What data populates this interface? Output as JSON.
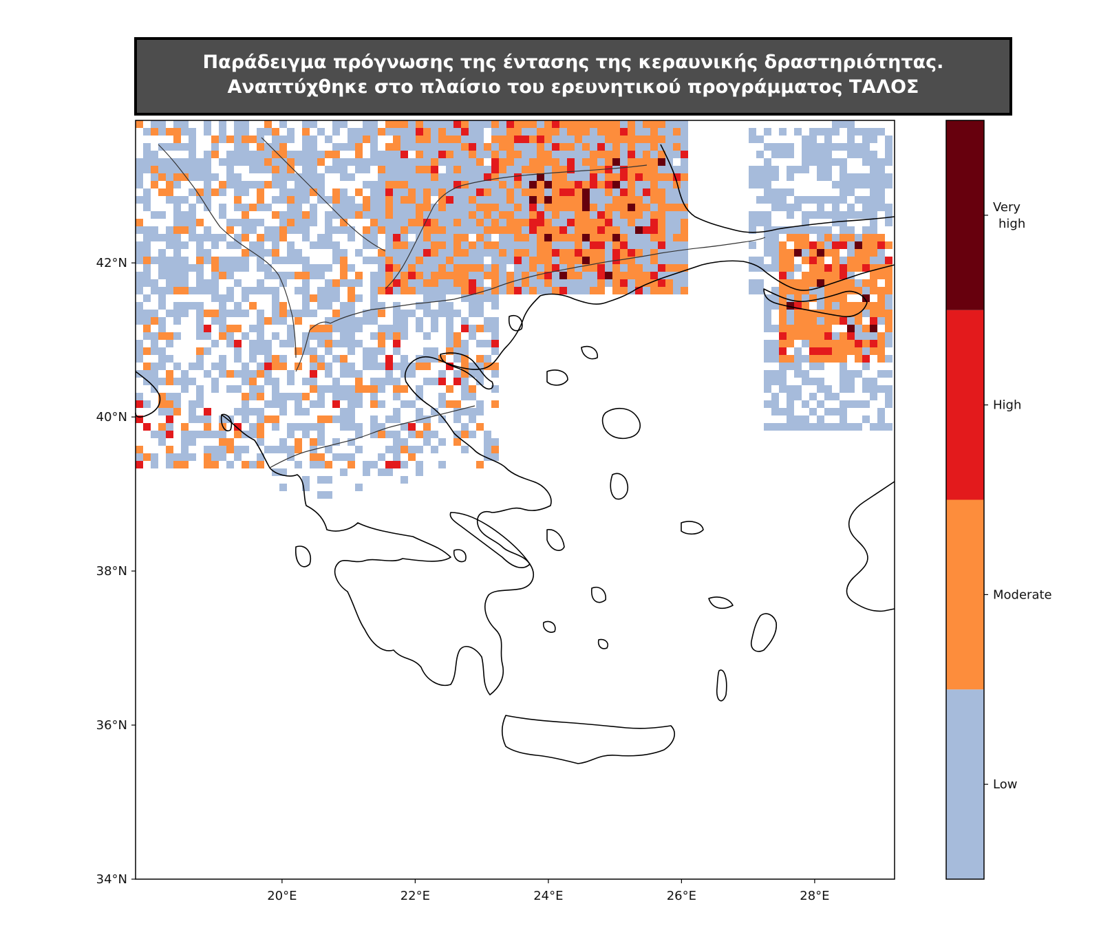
{
  "title": {
    "line1": "Παράδειγμα πρόγνωσης της έντασης της κεραυνικής δραστηριότητας.",
    "line2": "Αναπτύχθηκε στο πλαίσιο του ερευνητικού προγράμματος ΤΑΛΟΣ"
  },
  "map": {
    "lon_range": [
      17.8,
      29.2
    ],
    "lat_range": [
      34.0,
      43.85
    ],
    "lat_ticks": [
      {
        "value": 42,
        "label": "42°N"
      },
      {
        "value": 40,
        "label": "40°N"
      },
      {
        "value": 38,
        "label": "38°N"
      },
      {
        "value": 36,
        "label": "36°N"
      },
      {
        "value": 34,
        "label": "34°N"
      }
    ],
    "lon_ticks": [
      {
        "value": 20,
        "label": "20°E"
      },
      {
        "value": 22,
        "label": "22°E"
      },
      {
        "value": 24,
        "label": "24°E"
      },
      {
        "value": 26,
        "label": "26°E"
      },
      {
        "value": 28,
        "label": "28°E"
      }
    ]
  },
  "colorbar": {
    "levels": [
      {
        "label": "Low",
        "color": "#a6bbdb"
      },
      {
        "label": "Moderate",
        "color": "#fd8d3c"
      },
      {
        "label": "High",
        "color": "#e31a1c"
      },
      {
        "label": "Very\nhigh",
        "color": "#67000d"
      }
    ]
  }
}
